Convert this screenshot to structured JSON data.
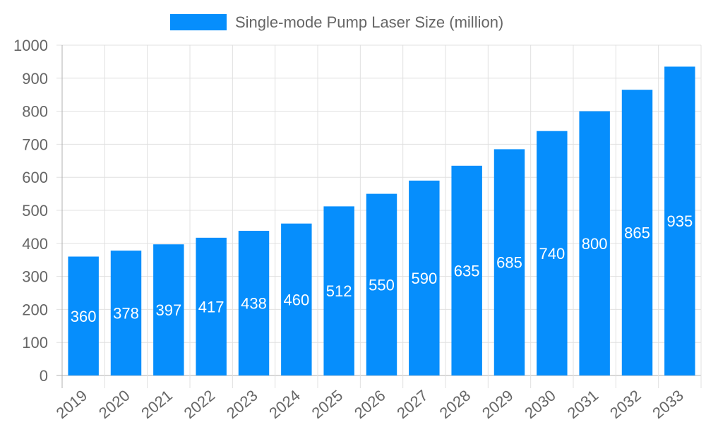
{
  "chart_data": {
    "type": "bar",
    "title": "",
    "xlabel": "",
    "ylabel": "",
    "categories": [
      "2019",
      "2020",
      "2021",
      "2022",
      "2023",
      "2024",
      "2025",
      "2026",
      "2027",
      "2028",
      "2029",
      "2030",
      "2031",
      "2032",
      "2033"
    ],
    "series": [
      {
        "name": "Single-mode Pump Laser Size (million)",
        "values": [
          360,
          378,
          397,
          417,
          438,
          460,
          512,
          550,
          590,
          635,
          685,
          740,
          800,
          865,
          935
        ]
      }
    ],
    "ylim": [
      0,
      1000
    ],
    "yticks": [
      0,
      100,
      200,
      300,
      400,
      500,
      600,
      700,
      800,
      900,
      1000
    ],
    "grid": true,
    "legend": "top-center",
    "data_labels": true,
    "colors": {
      "bar": "#068efc",
      "grid": "#e0e0e0",
      "axis": "#b0b0b0",
      "text": "#666666",
      "label": "#ffffff"
    }
  }
}
